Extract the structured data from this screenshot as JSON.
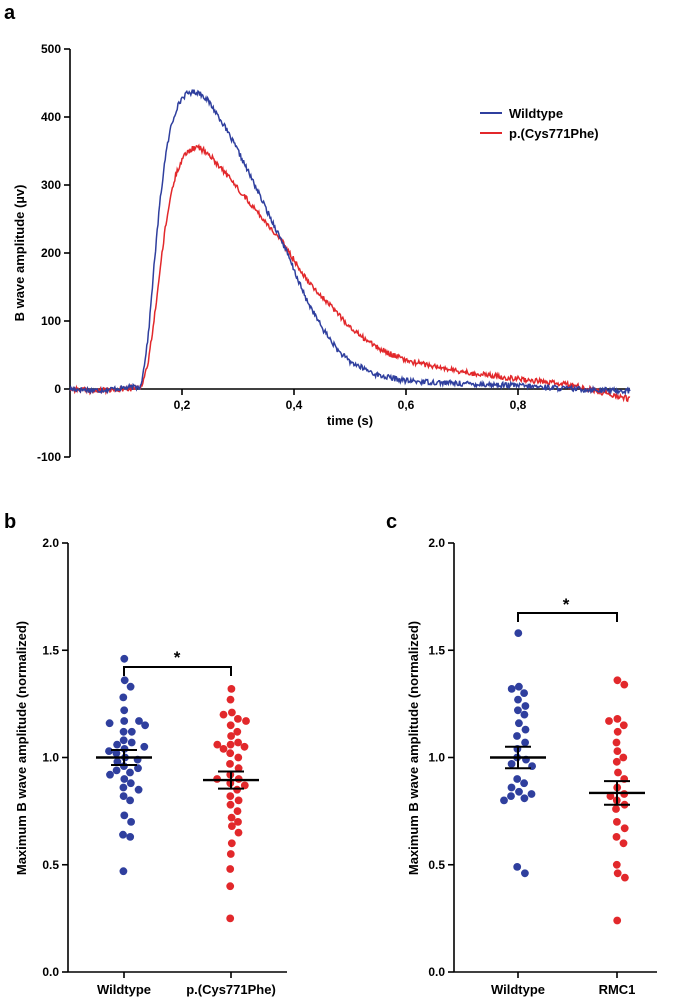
{
  "figure": {
    "colors": {
      "wildtype": "#2f3f9e",
      "mutant": "#e2282b",
      "axis": "#000000"
    }
  },
  "chart_data": [
    {
      "panel": "a",
      "type": "line",
      "xlabel": "time (s)",
      "ylabel": "B wave amplitude (µv)",
      "xlim": [
        0,
        1.0
      ],
      "ylim": [
        -100,
        500
      ],
      "xticks": [
        0.2,
        0.4,
        0.6,
        0.8
      ],
      "xtick_labels": [
        "0,2",
        "0,4",
        "0,6",
        "0,8"
      ],
      "yticks": [
        -100,
        0,
        100,
        200,
        300,
        400,
        500
      ],
      "grid": false,
      "legend_position": "top-right",
      "series": [
        {
          "name": "Wildtype",
          "color": "#2f3f9e",
          "x": [
            0,
            0.05,
            0.1,
            0.125,
            0.13,
            0.14,
            0.15,
            0.16,
            0.17,
            0.18,
            0.19,
            0.2,
            0.21,
            0.22,
            0.23,
            0.24,
            0.25,
            0.27,
            0.3,
            0.33,
            0.35,
            0.38,
            0.4,
            0.42,
            0.45,
            0.48,
            0.5,
            0.55,
            0.6,
            0.7,
            0.8,
            0.9,
            1.0
          ],
          "y": [
            0,
            -2,
            2,
            3,
            20,
            80,
            180,
            270,
            340,
            385,
            412,
            428,
            435,
            437,
            436,
            430,
            420,
            395,
            350,
            300,
            265,
            215,
            175,
            135,
            90,
            55,
            40,
            20,
            12,
            8,
            5,
            0,
            -3
          ]
        },
        {
          "name": "p.(Cys771Phe)",
          "color": "#e2282b",
          "x": [
            0,
            0.05,
            0.1,
            0.125,
            0.13,
            0.14,
            0.15,
            0.16,
            0.17,
            0.18,
            0.19,
            0.2,
            0.21,
            0.22,
            0.23,
            0.24,
            0.25,
            0.27,
            0.3,
            0.33,
            0.35,
            0.38,
            0.4,
            0.42,
            0.45,
            0.48,
            0.5,
            0.55,
            0.6,
            0.7,
            0.8,
            0.9,
            1.0
          ],
          "y": [
            0,
            -3,
            0,
            2,
            10,
            40,
            100,
            170,
            235,
            285,
            318,
            338,
            349,
            354,
            355,
            350,
            343,
            325,
            295,
            265,
            245,
            215,
            190,
            165,
            135,
            110,
            90,
            60,
            42,
            25,
            15,
            5,
            -15
          ]
        }
      ]
    },
    {
      "panel": "b",
      "type": "scatter",
      "ylabel": "Maximum B wave amplitude (normalized)",
      "ylim": [
        0.0,
        2.0
      ],
      "yticks": [
        0.0,
        0.5,
        1.0,
        1.5,
        2.0
      ],
      "ytick_labels": [
        "0.0",
        "0.5",
        "1.0",
        "1.5",
        "2.0"
      ],
      "categories": [
        "Wildtype",
        "p.(Cys771Phe)"
      ],
      "significance": "*",
      "series": [
        {
          "category": "Wildtype",
          "color": "#2f3f9e",
          "mean": 1.0,
          "sem": 0.035,
          "values": [
            1.46,
            1.36,
            1.33,
            1.28,
            1.22,
            1.17,
            1.17,
            1.16,
            1.15,
            1.12,
            1.12,
            1.08,
            1.07,
            1.06,
            1.05,
            1.04,
            1.03,
            1.02,
            1.0,
            0.99,
            0.98,
            0.96,
            0.95,
            0.94,
            0.93,
            0.92,
            0.9,
            0.88,
            0.86,
            0.85,
            0.82,
            0.8,
            0.73,
            0.7,
            0.64,
            0.63,
            0.47
          ]
        },
        {
          "category": "p.(Cys771Phe)",
          "color": "#e2282b",
          "mean": 0.895,
          "sem": 0.04,
          "values": [
            1.32,
            1.27,
            1.21,
            1.2,
            1.18,
            1.17,
            1.15,
            1.12,
            1.1,
            1.07,
            1.06,
            1.06,
            1.05,
            1.04,
            1.02,
            1.0,
            0.97,
            0.95,
            0.92,
            0.9,
            0.9,
            0.88,
            0.87,
            0.85,
            0.82,
            0.8,
            0.78,
            0.75,
            0.72,
            0.7,
            0.68,
            0.65,
            0.6,
            0.55,
            0.48,
            0.4,
            0.25
          ]
        }
      ]
    },
    {
      "panel": "c",
      "type": "scatter",
      "ylabel": "Maximum B wave amplitude (normalized)",
      "ylim": [
        0.0,
        2.0
      ],
      "yticks": [
        0.0,
        0.5,
        1.0,
        1.5,
        2.0
      ],
      "ytick_labels": [
        "0.0",
        "0.5",
        "1.0",
        "1.5",
        "2.0"
      ],
      "categories": [
        "Wildtype",
        "RMC1"
      ],
      "significance": "*",
      "series": [
        {
          "category": "Wildtype",
          "color": "#2f3f9e",
          "mean": 1.0,
          "sem": 0.05,
          "values": [
            1.58,
            1.33,
            1.32,
            1.3,
            1.27,
            1.24,
            1.22,
            1.2,
            1.16,
            1.13,
            1.1,
            1.07,
            1.04,
            1.0,
            0.99,
            0.97,
            0.96,
            0.9,
            0.88,
            0.86,
            0.84,
            0.83,
            0.82,
            0.81,
            0.8,
            0.49,
            0.46
          ]
        },
        {
          "category": "RMC1",
          "color": "#e2282b",
          "mean": 0.835,
          "sem": 0.055,
          "values": [
            1.36,
            1.34,
            1.18,
            1.17,
            1.15,
            1.12,
            1.07,
            1.03,
            1.0,
            0.98,
            0.93,
            0.9,
            0.86,
            0.83,
            0.82,
            0.8,
            0.78,
            0.76,
            0.7,
            0.67,
            0.63,
            0.6,
            0.5,
            0.46,
            0.44,
            0.24
          ]
        }
      ]
    }
  ]
}
